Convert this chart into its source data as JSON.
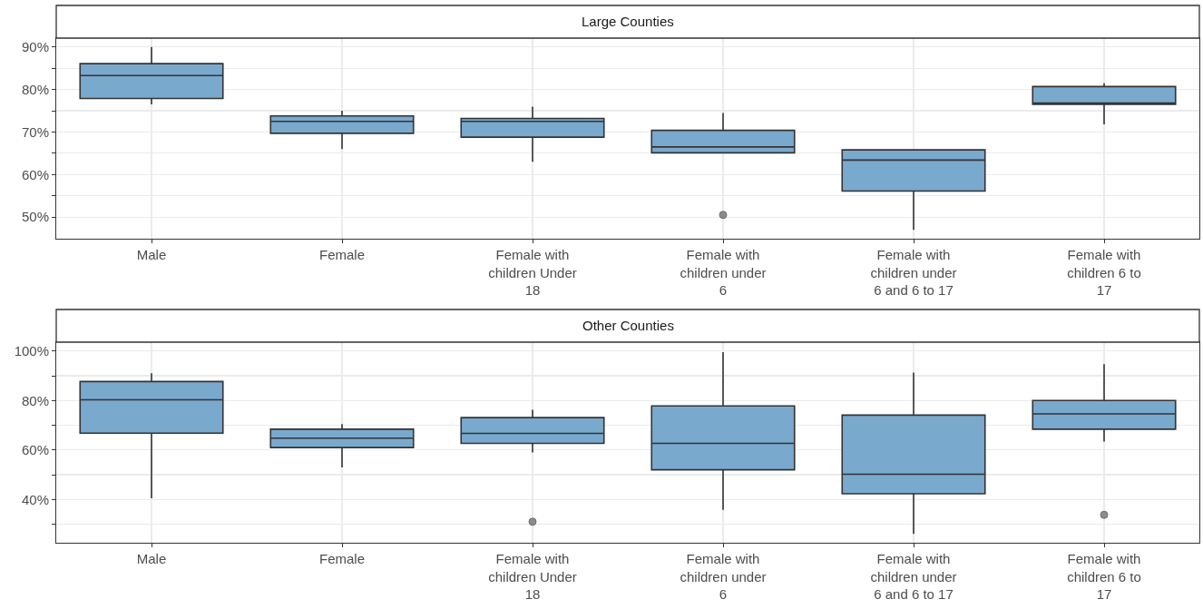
{
  "chart_data": [
    {
      "type": "box",
      "title": "Large Counties",
      "categories": [
        "Male",
        "Female",
        "Female with children Under 18",
        "Female with children under 6",
        "Female with children under 6 and 6 to 17",
        "Female with children 6 to 17"
      ],
      "color": "#7aa9ce",
      "grid": true,
      "ylim": [
        44.9,
        92.1
      ],
      "yticks": [
        {
          "value": 50,
          "label": "50%"
        },
        {
          "value": 55,
          "label": null
        },
        {
          "value": 60,
          "label": "60%"
        },
        {
          "value": 65,
          "label": null
        },
        {
          "value": 70,
          "label": "70%"
        },
        {
          "value": 75,
          "label": null
        },
        {
          "value": 80,
          "label": "80%"
        },
        {
          "value": 85,
          "label": null
        },
        {
          "value": 90,
          "label": "90%"
        }
      ],
      "boxes": [
        {
          "low": 76.5,
          "q1": 77.9,
          "median": 83.3,
          "q3": 86.1,
          "high": 90
        },
        {
          "low": 66,
          "q1": 69.7,
          "median": 72.5,
          "q3": 73.8,
          "high": 75
        },
        {
          "low": 63,
          "q1": 68.8,
          "median": 72.5,
          "q3": 73.2,
          "high": 76
        },
        {
          "low": 65.1,
          "q1": 65.1,
          "median": 66.5,
          "q3": 70.4,
          "high": 74.5,
          "outliers": [
            50.5
          ]
        },
        {
          "low": 47,
          "q1": 56.1,
          "median": 63.4,
          "q3": 65.8,
          "high": 65.8
        },
        {
          "low": 71.8,
          "q1": 76.5,
          "median": 76.8,
          "q3": 80.7,
          "high": 81.5
        }
      ]
    },
    {
      "type": "box",
      "title": "Other Counties",
      "categories": [
        "Male",
        "Female",
        "Female with children Under 18",
        "Female with children under 6",
        "Female with children under 6 and 6 to 17",
        "Female with children 6 to 17"
      ],
      "color": "#7aa9ce",
      "grid": true,
      "ylim": [
        22.5,
        103.6
      ],
      "yticks": [
        {
          "value": 30,
          "label": null
        },
        {
          "value": 40,
          "label": "40%"
        },
        {
          "value": 50,
          "label": null
        },
        {
          "value": 60,
          "label": "60%"
        },
        {
          "value": 70,
          "label": null
        },
        {
          "value": 80,
          "label": "80%"
        },
        {
          "value": 90,
          "label": null
        },
        {
          "value": 100,
          "label": "100%"
        }
      ],
      "boxes": [
        {
          "low": 40.5,
          "q1": 66.8,
          "median": 80.3,
          "q3": 87.7,
          "high": 91
        },
        {
          "low": 53,
          "q1": 61,
          "median": 64.8,
          "q3": 68.4,
          "high": 70.5
        },
        {
          "low": 59,
          "q1": 62.7,
          "median": 66.7,
          "q3": 73.1,
          "high": 76.3,
          "outliers": [
            31
          ]
        },
        {
          "low": 35.8,
          "q1": 52,
          "median": 62.7,
          "q3": 77.8,
          "high": 99.6
        },
        {
          "low": 26.1,
          "q1": 42.3,
          "median": 50.2,
          "q3": 74.1,
          "high": 91.3
        },
        {
          "low": 63.4,
          "q1": 68.4,
          "median": 74.6,
          "q3": 80,
          "high": 94.7,
          "outliers": [
            33.8
          ]
        }
      ]
    }
  ]
}
